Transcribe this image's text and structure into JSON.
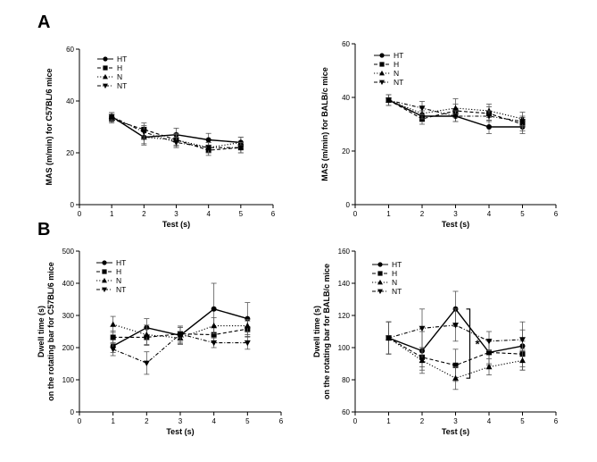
{
  "panels": [
    {
      "letter": "A"
    },
    {
      "letter": "B"
    }
  ],
  "chart_data": [
    {
      "type": "line",
      "panel": "A",
      "position": "top-left",
      "xlabel": "Test (s)",
      "ylabel": "MAS (m/min) for C57BL/6 mice",
      "xlim": [
        0,
        6
      ],
      "ylim": [
        0,
        60
      ],
      "xticks": [
        0,
        1,
        2,
        3,
        4,
        5,
        6
      ],
      "yticks": [
        0,
        20,
        40,
        60
      ],
      "x": [
        1,
        2,
        3,
        4,
        5
      ],
      "legend_position": "top-left",
      "series": [
        {
          "name": "HT",
          "marker": "circle",
          "dash": "solid",
          "values": [
            34,
            26,
            27,
            25,
            24
          ],
          "errors": [
            1.5,
            3,
            2.5,
            2.5,
            2
          ]
        },
        {
          "name": "H",
          "marker": "square",
          "dash": "dashed",
          "values": [
            33,
            29,
            25,
            21,
            22
          ],
          "errors": [
            1.5,
            2.5,
            2,
            2,
            2
          ]
        },
        {
          "name": "N",
          "marker": "triangle-up",
          "dash": "dotted",
          "values": [
            34,
            26,
            25,
            22,
            24
          ],
          "errors": [
            1.5,
            2.5,
            2.5,
            2,
            2
          ]
        },
        {
          "name": "NT",
          "marker": "triangle-down",
          "dash": "dotdash",
          "values": [
            34,
            28,
            24,
            22,
            22
          ],
          "errors": [
            1.5,
            2.5,
            2,
            2,
            2
          ]
        }
      ]
    },
    {
      "type": "line",
      "panel": "A",
      "position": "top-right",
      "xlabel": "Test (s)",
      "ylabel": "MAS (m/min) for BALB/c mice",
      "xlim": [
        0,
        6
      ],
      "ylim": [
        0,
        60
      ],
      "xticks": [
        0,
        1,
        2,
        3,
        4,
        5,
        6
      ],
      "yticks": [
        0,
        20,
        40,
        60
      ],
      "x": [
        1,
        2,
        3,
        4,
        5
      ],
      "legend_position": "top-left",
      "series": [
        {
          "name": "HT",
          "marker": "circle",
          "dash": "solid",
          "values": [
            39,
            33,
            33,
            29,
            29
          ],
          "errors": [
            2,
            2,
            2,
            2.5,
            2.5
          ]
        },
        {
          "name": "H",
          "marker": "square",
          "dash": "dashed",
          "values": [
            39,
            32,
            35,
            34,
            30
          ],
          "errors": [
            2,
            2,
            2.5,
            2.5,
            2.5
          ]
        },
        {
          "name": "N",
          "marker": "triangle-up",
          "dash": "dotted",
          "values": [
            39,
            34,
            36,
            35,
            32
          ],
          "errors": [
            2,
            2,
            3.5,
            2.5,
            2.5
          ]
        },
        {
          "name": "NT",
          "marker": "triangle-down",
          "dash": "dotdash",
          "values": [
            39,
            36,
            33,
            33,
            31
          ],
          "errors": [
            2,
            2.5,
            2,
            2,
            2
          ]
        }
      ]
    },
    {
      "type": "line",
      "panel": "B",
      "position": "bottom-left",
      "xlabel": "Test (s)",
      "ylabel_lines": [
        "Dwell time (s)",
        "on the rotating bar for C57BL/6 mice"
      ],
      "xlim": [
        0,
        6
      ],
      "ylim": [
        0,
        500
      ],
      "xticks": [
        0,
        1,
        2,
        3,
        4,
        5,
        6
      ],
      "yticks": [
        0,
        100,
        200,
        300,
        400,
        500
      ],
      "x": [
        1,
        2,
        3,
        4,
        5
      ],
      "legend_position": "top-left",
      "series": [
        {
          "name": "HT",
          "marker": "circle",
          "dash": "solid",
          "values": [
            205,
            262,
            238,
            320,
            290
          ],
          "errors": [
            20,
            28,
            25,
            80,
            50
          ]
        },
        {
          "name": "H",
          "marker": "square",
          "dash": "dashed",
          "values": [
            232,
            232,
            243,
            240,
            258
          ],
          "errors": [
            20,
            25,
            20,
            25,
            25
          ]
        },
        {
          "name": "N",
          "marker": "triangle-up",
          "dash": "dotted",
          "values": [
            272,
            240,
            230,
            268,
            268
          ],
          "errors": [
            25,
            30,
            20,
            25,
            20
          ]
        },
        {
          "name": "NT",
          "marker": "triangle-down",
          "dash": "dotdash",
          "values": [
            195,
            152,
            242,
            215,
            215
          ],
          "errors": [
            20,
            35,
            25,
            15,
            20
          ]
        }
      ]
    },
    {
      "type": "line",
      "panel": "B",
      "position": "bottom-right",
      "xlabel": "Test (s)",
      "ylabel_lines": [
        "Dwell time (s)",
        "on the rotating bar for BALB/c mice"
      ],
      "xlim": [
        0,
        6
      ],
      "ylim": [
        60,
        160
      ],
      "xticks": [
        0,
        1,
        2,
        3,
        4,
        5,
        6
      ],
      "yticks": [
        60,
        80,
        100,
        120,
        140,
        160
      ],
      "x": [
        1,
        2,
        3,
        4,
        5
      ],
      "legend_position": "top-left",
      "annotation": "*",
      "series": [
        {
          "name": "HT",
          "marker": "circle",
          "dash": "solid",
          "values": [
            106,
            98,
            124,
            97,
            101
          ],
          "errors": [
            10,
            12,
            11,
            7,
            15
          ]
        },
        {
          "name": "H",
          "marker": "square",
          "dash": "dashed",
          "values": [
            106,
            94,
            89,
            97,
            96
          ],
          "errors": [
            10,
            6,
            10,
            8,
            8
          ]
        },
        {
          "name": "N",
          "marker": "triangle-up",
          "dash": "dotted",
          "values": [
            106,
            92,
            81,
            88,
            92
          ],
          "errors": [
            10,
            8,
            7,
            5,
            6
          ]
        },
        {
          "name": "NT",
          "marker": "triangle-down",
          "dash": "dotdash",
          "values": [
            106,
            112,
            114,
            104,
            105
          ],
          "errors": [
            10,
            12,
            10,
            6,
            6
          ]
        }
      ]
    }
  ]
}
